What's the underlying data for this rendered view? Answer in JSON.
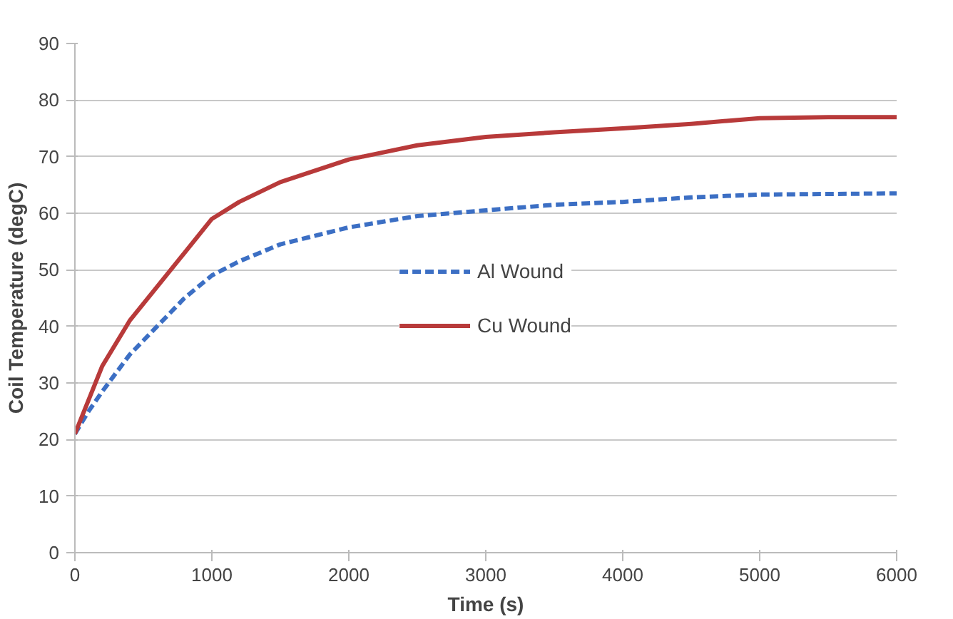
{
  "chart_data": {
    "type": "line",
    "xlabel": "Time (s)",
    "ylabel": "Coil Temperature (degC)",
    "xlim": [
      0,
      6000
    ],
    "xticks": [
      0,
      1000,
      2000,
      3000,
      4000,
      5000,
      6000
    ],
    "ylim": [
      0,
      90
    ],
    "yticks": [
      0,
      10,
      20,
      30,
      40,
      50,
      60,
      70,
      80,
      90
    ],
    "grid": "y",
    "legend": "center",
    "marker": "none",
    "x": [
      0,
      100,
      200,
      400,
      600,
      800,
      1000,
      1200,
      1500,
      2000,
      2500,
      3000,
      3500,
      4000,
      4500,
      5000,
      5500,
      6000
    ],
    "series": [
      {
        "name": "Al Wound",
        "color": "#3c6fc4",
        "line_style": "dashed",
        "values": [
          21,
          25,
          28.5,
          35,
          40,
          45,
          49,
          51.5,
          54.5,
          57.5,
          59.5,
          60.5,
          61.5,
          62,
          62.8,
          63.3,
          63.4,
          63.5
        ]
      },
      {
        "name": "Cu Wound",
        "color": "#b83a3a",
        "line_style": "solid",
        "values": [
          21,
          27,
          33,
          41,
          47,
          53,
          59,
          62,
          65.5,
          69.5,
          72,
          73.5,
          74.3,
          75,
          75.8,
          76.8,
          77,
          77
        ]
      }
    ]
  }
}
